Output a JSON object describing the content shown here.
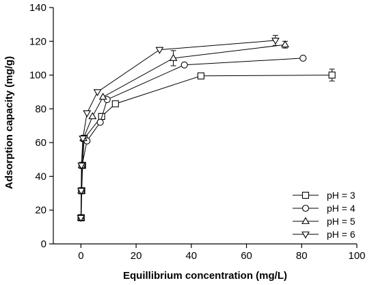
{
  "chart_data": {
    "type": "line",
    "title": "",
    "xlabel": "Equillibrium concentration (mg/L)",
    "ylabel": "Adsorption capacity (mg/g)",
    "xlim": [
      -10,
      100
    ],
    "ylim": [
      0,
      140
    ],
    "xticks": [
      0,
      20,
      40,
      60,
      80,
      100
    ],
    "yticks": [
      0,
      20,
      40,
      60,
      80,
      100,
      120,
      140
    ],
    "grid": false,
    "legend_position": "bottom-right",
    "series": [
      {
        "name": "pH = 3",
        "marker": "square",
        "x": [
          0.1,
          0.3,
          0.6,
          1.2,
          7.5,
          12.5,
          43.5,
          91
        ],
        "y": [
          15.5,
          31.5,
          46.5,
          62.5,
          75.5,
          83,
          99.5,
          100
        ],
        "yerr": [
          0,
          0,
          0,
          0,
          0,
          0,
          1.5,
          3.5
        ]
      },
      {
        "name": "pH = 4",
        "marker": "circle",
        "x": [
          0.05,
          0.2,
          0.4,
          2.2,
          7,
          9.5,
          37.5,
          80.5
        ],
        "y": [
          15.5,
          31.5,
          46.5,
          61,
          72,
          85.5,
          106,
          110
        ],
        "yerr": [
          0,
          0,
          0,
          0,
          0,
          0,
          0,
          0
        ]
      },
      {
        "name": "pH = 5",
        "marker": "triangle-up",
        "x": [
          0.05,
          0.15,
          0.3,
          0.9,
          4.2,
          8,
          33.5,
          74
        ],
        "y": [
          15.5,
          31.5,
          46.5,
          62.5,
          75.5,
          87,
          110,
          118
        ],
        "yerr": [
          0,
          0,
          0,
          0,
          0,
          0,
          4.5,
          2
        ]
      },
      {
        "name": "pH = 6",
        "marker": "triangle-down",
        "x": [
          0.0,
          0.1,
          0.2,
          0.7,
          2.2,
          6,
          28.5,
          70.5
        ],
        "y": [
          15.5,
          31.5,
          46.5,
          62.5,
          77.5,
          90,
          115,
          120.5
        ],
        "yerr": [
          0,
          0,
          0,
          0,
          0,
          0,
          0,
          3
        ]
      }
    ]
  }
}
